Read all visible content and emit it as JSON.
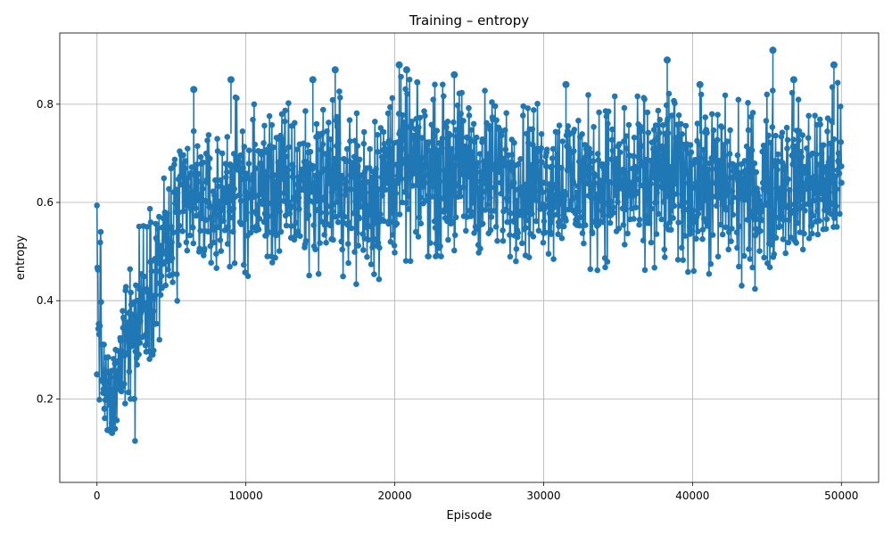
{
  "chart_data": {
    "type": "line",
    "title": "Training – entropy",
    "xlabel": "Episode",
    "ylabel": "entropy",
    "xlim": [
      -2500,
      52500
    ],
    "ylim": [
      0.03,
      0.945
    ],
    "xticks": [
      0,
      10000,
      20000,
      30000,
      40000,
      50000
    ],
    "yticks": [
      0.2,
      0.4,
      0.6,
      0.8
    ],
    "grid": true,
    "marker": "circle",
    "series_color": "#1f77b4",
    "series": [
      {
        "x": [
          0,
          500,
          1000,
          1500,
          2000,
          2500,
          3000,
          3500,
          4000,
          4500,
          5000,
          5500,
          6000,
          6500,
          7000,
          7500,
          8000,
          9000,
          10000,
          12000,
          14000,
          16000,
          18000,
          20000,
          22000,
          24000,
          26000,
          28000,
          30000,
          32000,
          34000,
          36000,
          38000,
          40000,
          42000,
          44000,
          46000,
          48000,
          50000
        ],
        "y": [
          0.25,
          0.18,
          0.15,
          0.22,
          0.32,
          0.2,
          0.38,
          0.42,
          0.46,
          0.5,
          0.55,
          0.58,
          0.6,
          0.6,
          0.61,
          0.6,
          0.6,
          0.62,
          0.62,
          0.62,
          0.63,
          0.63,
          0.62,
          0.64,
          0.64,
          0.64,
          0.64,
          0.64,
          0.64,
          0.64,
          0.64,
          0.64,
          0.63,
          0.63,
          0.63,
          0.62,
          0.63,
          0.63,
          0.64
        ]
      }
    ],
    "band": {
      "x": [
        0,
        500,
        1000,
        1500,
        2000,
        2500,
        3000,
        3500,
        4000,
        4500,
        5000,
        5500,
        6000,
        6500,
        7000,
        7500,
        8000,
        9000,
        10000,
        12000,
        14000,
        16000,
        18000,
        20000,
        22000,
        24000,
        26000,
        28000,
        30000,
        32000,
        34000,
        36000,
        38000,
        40000,
        42000,
        44000,
        46000,
        48000,
        50000
      ],
      "low": [
        0.15,
        0.11,
        0.07,
        0.12,
        0.2,
        0.1,
        0.23,
        0.28,
        0.3,
        0.32,
        0.34,
        0.4,
        0.43,
        0.44,
        0.45,
        0.45,
        0.43,
        0.46,
        0.45,
        0.45,
        0.45,
        0.46,
        0.42,
        0.47,
        0.49,
        0.49,
        0.47,
        0.48,
        0.48,
        0.47,
        0.46,
        0.46,
        0.45,
        0.46,
        0.45,
        0.42,
        0.46,
        0.47,
        0.47
      ],
      "high": [
        0.76,
        0.32,
        0.28,
        0.37,
        0.58,
        0.55,
        0.57,
        0.6,
        0.63,
        0.68,
        0.73,
        0.74,
        0.76,
        0.77,
        0.76,
        0.74,
        0.74,
        0.82,
        0.8,
        0.8,
        0.82,
        0.83,
        0.8,
        0.86,
        0.84,
        0.84,
        0.83,
        0.83,
        0.8,
        0.82,
        0.82,
        0.81,
        0.85,
        0.82,
        0.82,
        0.8,
        0.84,
        0.8,
        0.85
      ]
    },
    "spikes": {
      "x": [
        6500,
        9000,
        14500,
        16000,
        20300,
        20800,
        24000,
        31500,
        38300,
        40500,
        45400,
        46800,
        49500
      ],
      "y": [
        0.83,
        0.85,
        0.85,
        0.87,
        0.88,
        0.87,
        0.86,
        0.84,
        0.89,
        0.84,
        0.91,
        0.85,
        0.88
      ]
    }
  }
}
